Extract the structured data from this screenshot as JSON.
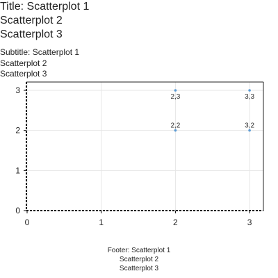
{
  "title_lines": [
    "Title: Scatterplot 1",
    "Scatterplot 2",
    "Scatterplot 3"
  ],
  "subtitle_lines": [
    "Subtitle: Scatterplot 1",
    "Scatterplot 2",
    "Scatterplot 3"
  ],
  "footer_lines": [
    "Footer: Scatterplot 1",
    "Scatterplot 2",
    "Scatterplot 3"
  ],
  "chart_data": {
    "type": "scatter",
    "title": "Title: Scatterplot 1\nScatterplot 2\nScatterplot 3",
    "subtitle": "Subtitle: Scatterplot 1\nScatterplot 2\nScatterplot 3",
    "footer": "Footer: Scatterplot 1\nScatterplot 2\nScatterplot 3",
    "xlim": [
      0,
      3.2
    ],
    "ylim": [
      0,
      3.2
    ],
    "x_ticks": [
      0,
      1,
      2,
      3
    ],
    "y_ticks": [
      0,
      1,
      2,
      3
    ],
    "grid": true,
    "points": [
      {
        "x": 2,
        "y": 2,
        "label": "2,2"
      },
      {
        "x": 3,
        "y": 2,
        "label": "3,2"
      },
      {
        "x": 2,
        "y": 3,
        "label": "2,3"
      },
      {
        "x": 3,
        "y": 3,
        "label": "3,3"
      }
    ],
    "point_color": "#5b9bd5"
  }
}
